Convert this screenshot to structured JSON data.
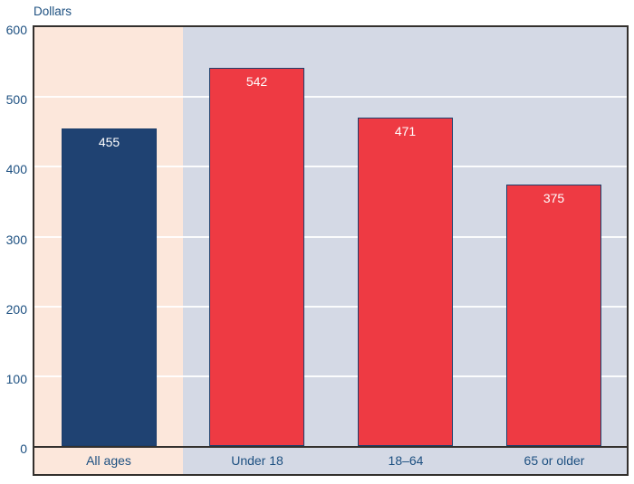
{
  "chart_data": {
    "type": "bar",
    "title": "Dollars",
    "ylabel": "Dollars",
    "xlabel": "",
    "categories": [
      "All ages",
      "Under 18",
      "18–64",
      "65 or older"
    ],
    "values": [
      455,
      542,
      471,
      375
    ],
    "value_labels": [
      "455",
      "542",
      "471",
      "375"
    ],
    "ylim": [
      0,
      600
    ],
    "yticks": [
      0,
      100,
      200,
      300,
      400,
      500,
      600
    ],
    "grid": "horizontal white lines at each 100 dollars",
    "legend": "none",
    "bar_colors": [
      "#1f4272",
      "#ee3a43",
      "#ee3a43",
      "#ee3a43"
    ],
    "highlight_note": "All ages bar shown on pink band; age-group bars on blue-gray band"
  },
  "colors": {
    "navy_bar": "#1f4272",
    "red_bar": "#ee3a43",
    "bar_border": "#1c3e6b",
    "pink_band": "#fce7db",
    "bluegray_band": "#d4d9e5",
    "axis_text": "#1d5081",
    "value_label_text": "#ffffff",
    "frame": "#33302d",
    "gridline": "rgba(255,255,255,0.9)"
  }
}
